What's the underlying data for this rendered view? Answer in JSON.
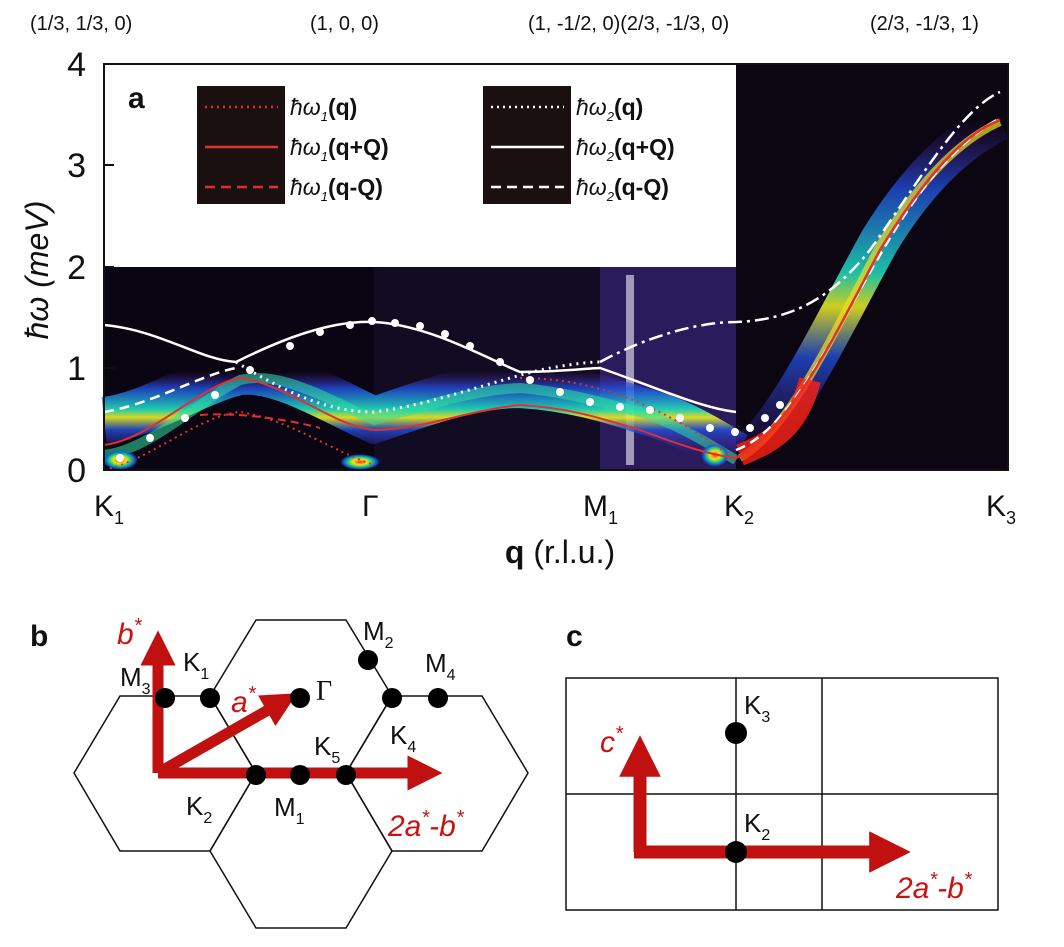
{
  "panel_a": {
    "label": "a",
    "top_coords": [
      "(1/3, 1/3, 0)",
      "(1, 0, 0)",
      "(1, -1/2, 0)(2/3, -1/3, 0)",
      "(2/3, -1/3, 1)"
    ],
    "y_label": "ħω (meV)",
    "y_ticks": [
      "0",
      "1",
      "2",
      "3",
      "4"
    ],
    "x_points": [
      {
        "name": "K",
        "sub": "1"
      },
      {
        "name": "Γ",
        "sub": ""
      },
      {
        "name": "M",
        "sub": "1"
      },
      {
        "name": "K",
        "sub": "2"
      },
      {
        "name": "K",
        "sub": "3"
      }
    ],
    "x_label_bold": "q",
    "x_label_rest": " (r.l.u.)",
    "legend_left": [
      {
        "pre": "ħω",
        "sub": "1",
        "arg": "(q)",
        "style": "dotted",
        "color": "#e03030"
      },
      {
        "pre": "ħω",
        "sub": "1",
        "arg": "(q+Q)",
        "style": "solid",
        "color": "#e03030"
      },
      {
        "pre": "ħω",
        "sub": "1",
        "arg": "(q-Q)",
        "style": "dashed",
        "color": "#e03030"
      }
    ],
    "legend_right": [
      {
        "pre": "ħω",
        "sub": "2",
        "arg": "(q)",
        "style": "dotted",
        "color": "#ffffff"
      },
      {
        "pre": "ħω",
        "sub": "2",
        "arg": "(q+Q)",
        "style": "solid",
        "color": "#ffffff"
      },
      {
        "pre": "ħω",
        "sub": "2",
        "arg": "(q-Q)",
        "style": "dashed",
        "color": "#ffffff"
      }
    ]
  },
  "panel_b": {
    "label": "b",
    "points": [
      {
        "name": "M",
        "sub": "3"
      },
      {
        "name": "K",
        "sub": "1"
      },
      {
        "name": "Γ",
        "sub": ""
      },
      {
        "name": "M",
        "sub": "2"
      },
      {
        "name": "M",
        "sub": "4"
      },
      {
        "name": "K",
        "sub": "4"
      },
      {
        "name": "K",
        "sub": "5"
      },
      {
        "name": "K",
        "sub": "2"
      },
      {
        "name": "M",
        "sub": "1"
      }
    ],
    "vec_b": {
      "base": "b",
      "sup": "*"
    },
    "vec_a": {
      "base": "a",
      "sup": "*"
    },
    "vec_2ab": {
      "base": "2a",
      "sup1": "*",
      "mid": "-b",
      "sup2": "*"
    }
  },
  "panel_c": {
    "label": "c",
    "points": [
      {
        "name": "K",
        "sub": "3"
      },
      {
        "name": "K",
        "sub": "2"
      }
    ],
    "vec_c": {
      "base": "c",
      "sup": "*"
    },
    "vec_2ab": {
      "base": "2a",
      "sup1": "*",
      "mid": "-b",
      "sup2": "*"
    }
  },
  "colors": {
    "arrow_red": "#c01010",
    "text_red": "#cc1111",
    "white_curve": "#ffffff",
    "red_curve": "#e03030"
  }
}
